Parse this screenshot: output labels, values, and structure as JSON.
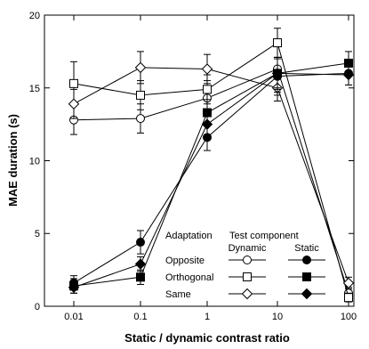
{
  "chart_data": {
    "type": "line",
    "xlabel": "Static / dynamic contrast ratio",
    "ylabel": "MAE duration (s)",
    "xscale": "log",
    "xlim": [
      0.01,
      100
    ],
    "ylim": [
      0,
      20
    ],
    "x": [
      0.01,
      0.1,
      1,
      10,
      100
    ],
    "xtick_labels": [
      "0.01",
      "0.1",
      "1",
      "10",
      "100"
    ],
    "ytick_labels": [
      "0",
      "5",
      "10",
      "15",
      "20"
    ],
    "grid": false,
    "legend": {
      "placement": "bottom-right",
      "row_header": "Adaptation",
      "column_header": "Test component",
      "columns": [
        "Dynamic",
        "Static"
      ],
      "rows": [
        "Opposite",
        "Orthogonal",
        "Same"
      ]
    },
    "series": [
      {
        "adaptation": "Opposite",
        "test": "Dynamic",
        "marker": "circle",
        "filled": false,
        "values": [
          12.8,
          12.9,
          14.3,
          16.3,
          0.9
        ],
        "errors": [
          1.0,
          1.0,
          1.2,
          1.6,
          0.4
        ]
      },
      {
        "adaptation": "Orthogonal",
        "test": "Dynamic",
        "marker": "square",
        "filled": false,
        "values": [
          15.3,
          14.5,
          14.9,
          18.1,
          0.6
        ],
        "errors": [
          1.5,
          1.0,
          1.0,
          1.0,
          0.3
        ]
      },
      {
        "adaptation": "Same",
        "test": "Dynamic",
        "marker": "diamond",
        "filled": false,
        "values": [
          13.9,
          16.4,
          16.3,
          15.0,
          1.6
        ],
        "errors": [
          1.0,
          1.1,
          1.0,
          0.9,
          0.4
        ]
      },
      {
        "adaptation": "Opposite",
        "test": "Static",
        "marker": "circle",
        "filled": true,
        "values": [
          1.6,
          4.4,
          11.6,
          15.8,
          16.0
        ],
        "errors": [
          0.5,
          0.8,
          0.9,
          1.3,
          0.8
        ]
      },
      {
        "adaptation": "Orthogonal",
        "test": "Static",
        "marker": "square",
        "filled": true,
        "values": [
          1.4,
          2.0,
          13.3,
          16.0,
          16.7
        ],
        "errors": [
          0.5,
          0.5,
          0.9,
          1.1,
          0.8
        ]
      },
      {
        "adaptation": "Same",
        "test": "Static",
        "marker": "diamond",
        "filled": true,
        "values": [
          1.3,
          2.9,
          12.5,
          16.0,
          15.9
        ],
        "errors": [
          0.4,
          0.5,
          0.9,
          1.0,
          0.7
        ]
      }
    ]
  }
}
